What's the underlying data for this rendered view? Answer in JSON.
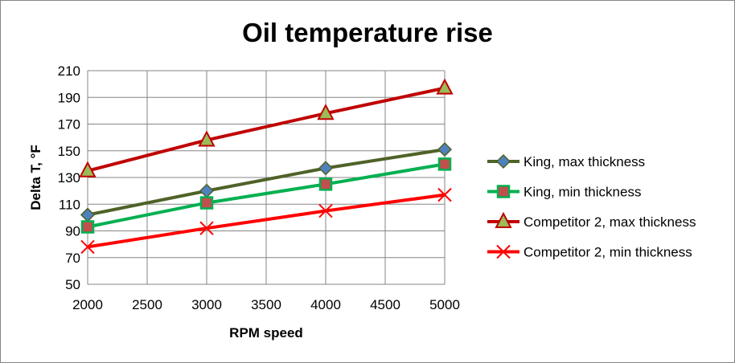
{
  "chart_data": {
    "type": "line",
    "title": "Oil temperature rise",
    "xlabel": "RPM speed",
    "ylabel": "Delta T, °F",
    "x": [
      2000,
      3000,
      4000,
      5000
    ],
    "xlim": [
      2000,
      5000
    ],
    "ylim": [
      50,
      210
    ],
    "xticks": [
      "2000",
      "2500",
      "3000",
      "3500",
      "4000",
      "4500",
      "5000"
    ],
    "yticks": [
      "50",
      "70",
      "90",
      "110",
      "130",
      "150",
      "170",
      "190",
      "210"
    ],
    "grid": true,
    "legend": "right",
    "series": [
      {
        "name": "King, max thickness",
        "values": [
          102,
          120,
          137,
          151
        ],
        "color": "#4F6228",
        "marker": "diamond",
        "marker_fill": "#4F81BD"
      },
      {
        "name": "King, min thickness",
        "values": [
          93,
          111,
          125,
          140
        ],
        "color": "#00B050",
        "marker": "square",
        "marker_fill": "#C0504D"
      },
      {
        "name": "Competitor 2, max thickness",
        "values": [
          135,
          158,
          178,
          197
        ],
        "color": "#C00000",
        "marker": "triangle",
        "marker_fill": "#9BBB59"
      },
      {
        "name": "Competitor 2, min thickness",
        "values": [
          78,
          92,
          105,
          117
        ],
        "color": "#FF0000",
        "marker": "x",
        "marker_fill": "#FF0000"
      }
    ]
  }
}
